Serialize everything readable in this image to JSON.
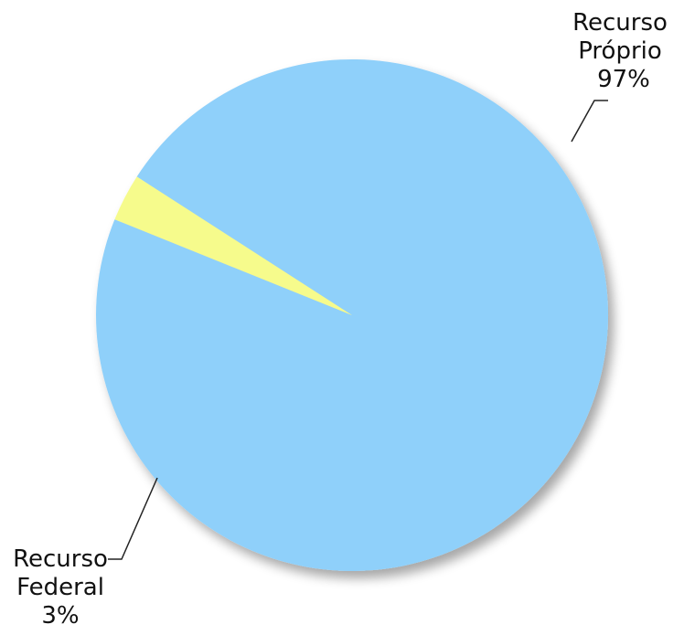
{
  "chart_data": {
    "type": "pie",
    "slices": [
      {
        "label_lines": [
          "Recurso",
          "Próprio"
        ],
        "value": 97,
        "percent_label": "97%",
        "color": "#8fd0fa"
      },
      {
        "label_lines": [
          "Recurso",
          "Federal"
        ],
        "value": 3,
        "percent_label": "3%",
        "color": "#f6fb8c"
      }
    ],
    "legend": "none",
    "data_labels": "outside with leader lines"
  }
}
